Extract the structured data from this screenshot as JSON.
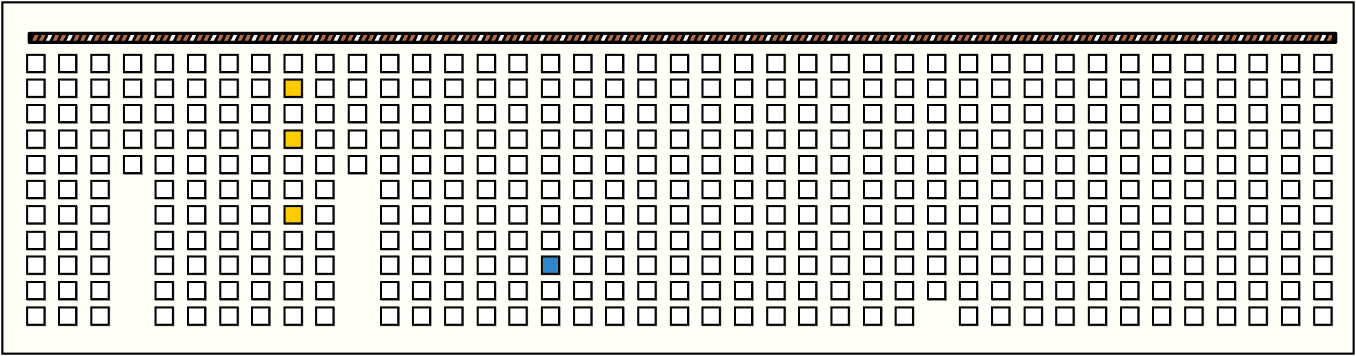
{
  "board": {
    "rows": 11,
    "cols": 41,
    "colors": {
      "background": "#fffff7",
      "empty": "#ffffff",
      "border": "#000000",
      "yellow": "#ffcc00",
      "blue": "#2f86c8",
      "stripe_brown": "#b06a40",
      "stripe_white": "#f2f2f2"
    },
    "missing": [
      [
        5,
        3
      ],
      [
        6,
        3
      ],
      [
        7,
        3
      ],
      [
        8,
        3
      ],
      [
        9,
        3
      ],
      [
        10,
        3
      ],
      [
        5,
        10
      ],
      [
        6,
        10
      ],
      [
        7,
        10
      ],
      [
        8,
        10
      ],
      [
        9,
        10
      ],
      [
        10,
        10
      ],
      [
        10,
        28
      ]
    ],
    "highlighted": [
      {
        "row": 1,
        "col": 8,
        "color": "yellow"
      },
      {
        "row": 3,
        "col": 8,
        "color": "yellow"
      },
      {
        "row": 6,
        "col": 8,
        "color": "yellow"
      },
      {
        "row": 8,
        "col": 16,
        "color": "blue"
      }
    ]
  }
}
